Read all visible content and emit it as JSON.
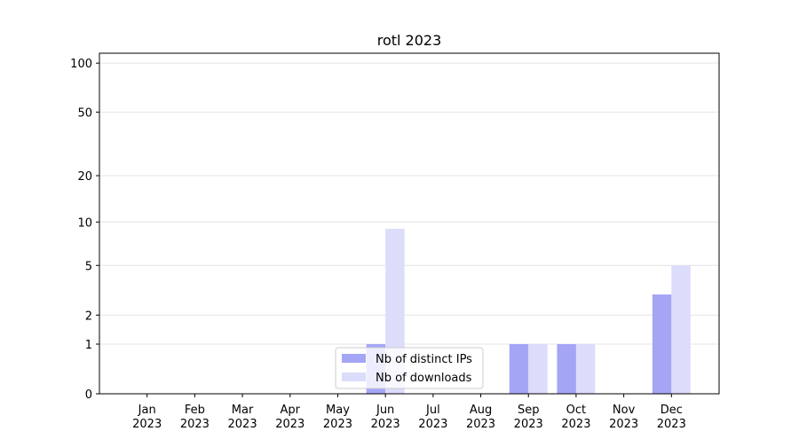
{
  "chart_data": {
    "type": "bar",
    "title": "rotl 2023",
    "categories": [
      [
        "Jan",
        "2023"
      ],
      [
        "Feb",
        "2023"
      ],
      [
        "Mar",
        "2023"
      ],
      [
        "Apr",
        "2023"
      ],
      [
        "May",
        "2023"
      ],
      [
        "Jun",
        "2023"
      ],
      [
        "Jul",
        "2023"
      ],
      [
        "Aug",
        "2023"
      ],
      [
        "Sep",
        "2023"
      ],
      [
        "Oct",
        "2023"
      ],
      [
        "Nov",
        "2023"
      ],
      [
        "Dec",
        "2023"
      ]
    ],
    "series": [
      {
        "name": "Nb of distinct IPs",
        "color": "#a5a5f6",
        "values": [
          0,
          0,
          0,
          0,
          0,
          1,
          0,
          0,
          1,
          1,
          0,
          3
        ]
      },
      {
        "name": "Nb of downloads",
        "color": "#dcdcfb",
        "values": [
          0,
          0,
          0,
          0,
          0,
          9,
          0,
          0,
          1,
          1,
          0,
          5
        ]
      }
    ],
    "yscale": "log1p",
    "ylim": [
      0,
      115
    ],
    "yticks": [
      0,
      1,
      2,
      5,
      10,
      20,
      50,
      100
    ],
    "grid": true,
    "legend": "lower center"
  }
}
